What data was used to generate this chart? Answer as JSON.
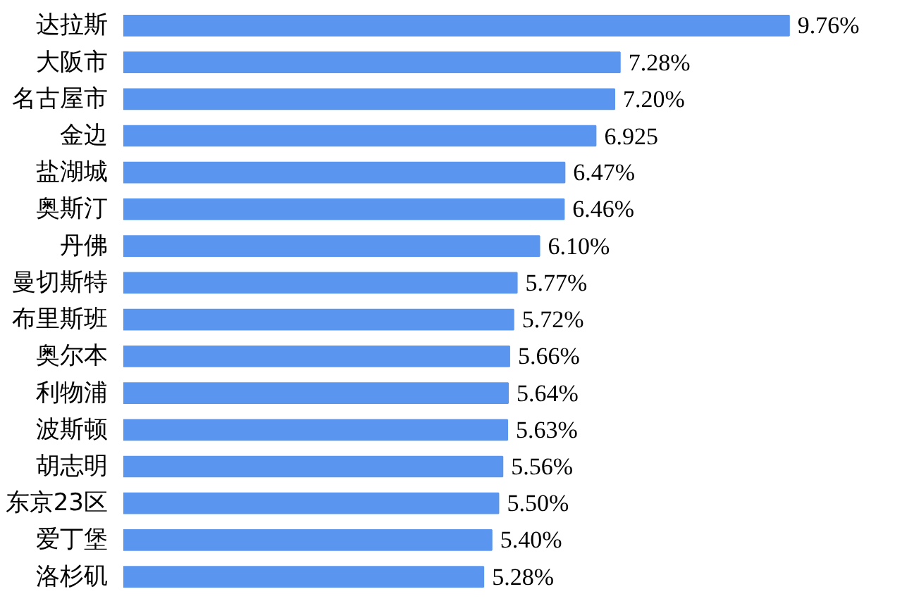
{
  "chart_data": {
    "type": "bar",
    "orientation": "horizontal",
    "color": "#5a96f0",
    "categories": [
      "达拉斯",
      "大阪市",
      "名古屋市",
      "金边",
      "盐湖城",
      "奥斯汀",
      "丹佛",
      "曼切斯特",
      "布里斯班",
      "奥尔本",
      "利物浦",
      "波斯顿",
      "胡志明",
      "东京23区",
      "爱丁堡",
      "洛杉矶"
    ],
    "values": [
      9.76,
      7.28,
      7.2,
      6.925,
      6.47,
      6.46,
      6.1,
      5.77,
      5.72,
      5.66,
      5.64,
      5.63,
      5.56,
      5.5,
      5.4,
      5.28
    ],
    "value_labels": [
      "9.76%",
      "7.28%",
      "7.20%",
      "6.925",
      "6.47%",
      "6.46%",
      "6.10%",
      "5.77%",
      "5.72%",
      "5.66%",
      "5.64%",
      "5.63%",
      "5.56%",
      "5.50%",
      "5.40%",
      "5.28%"
    ],
    "grid": false
  }
}
